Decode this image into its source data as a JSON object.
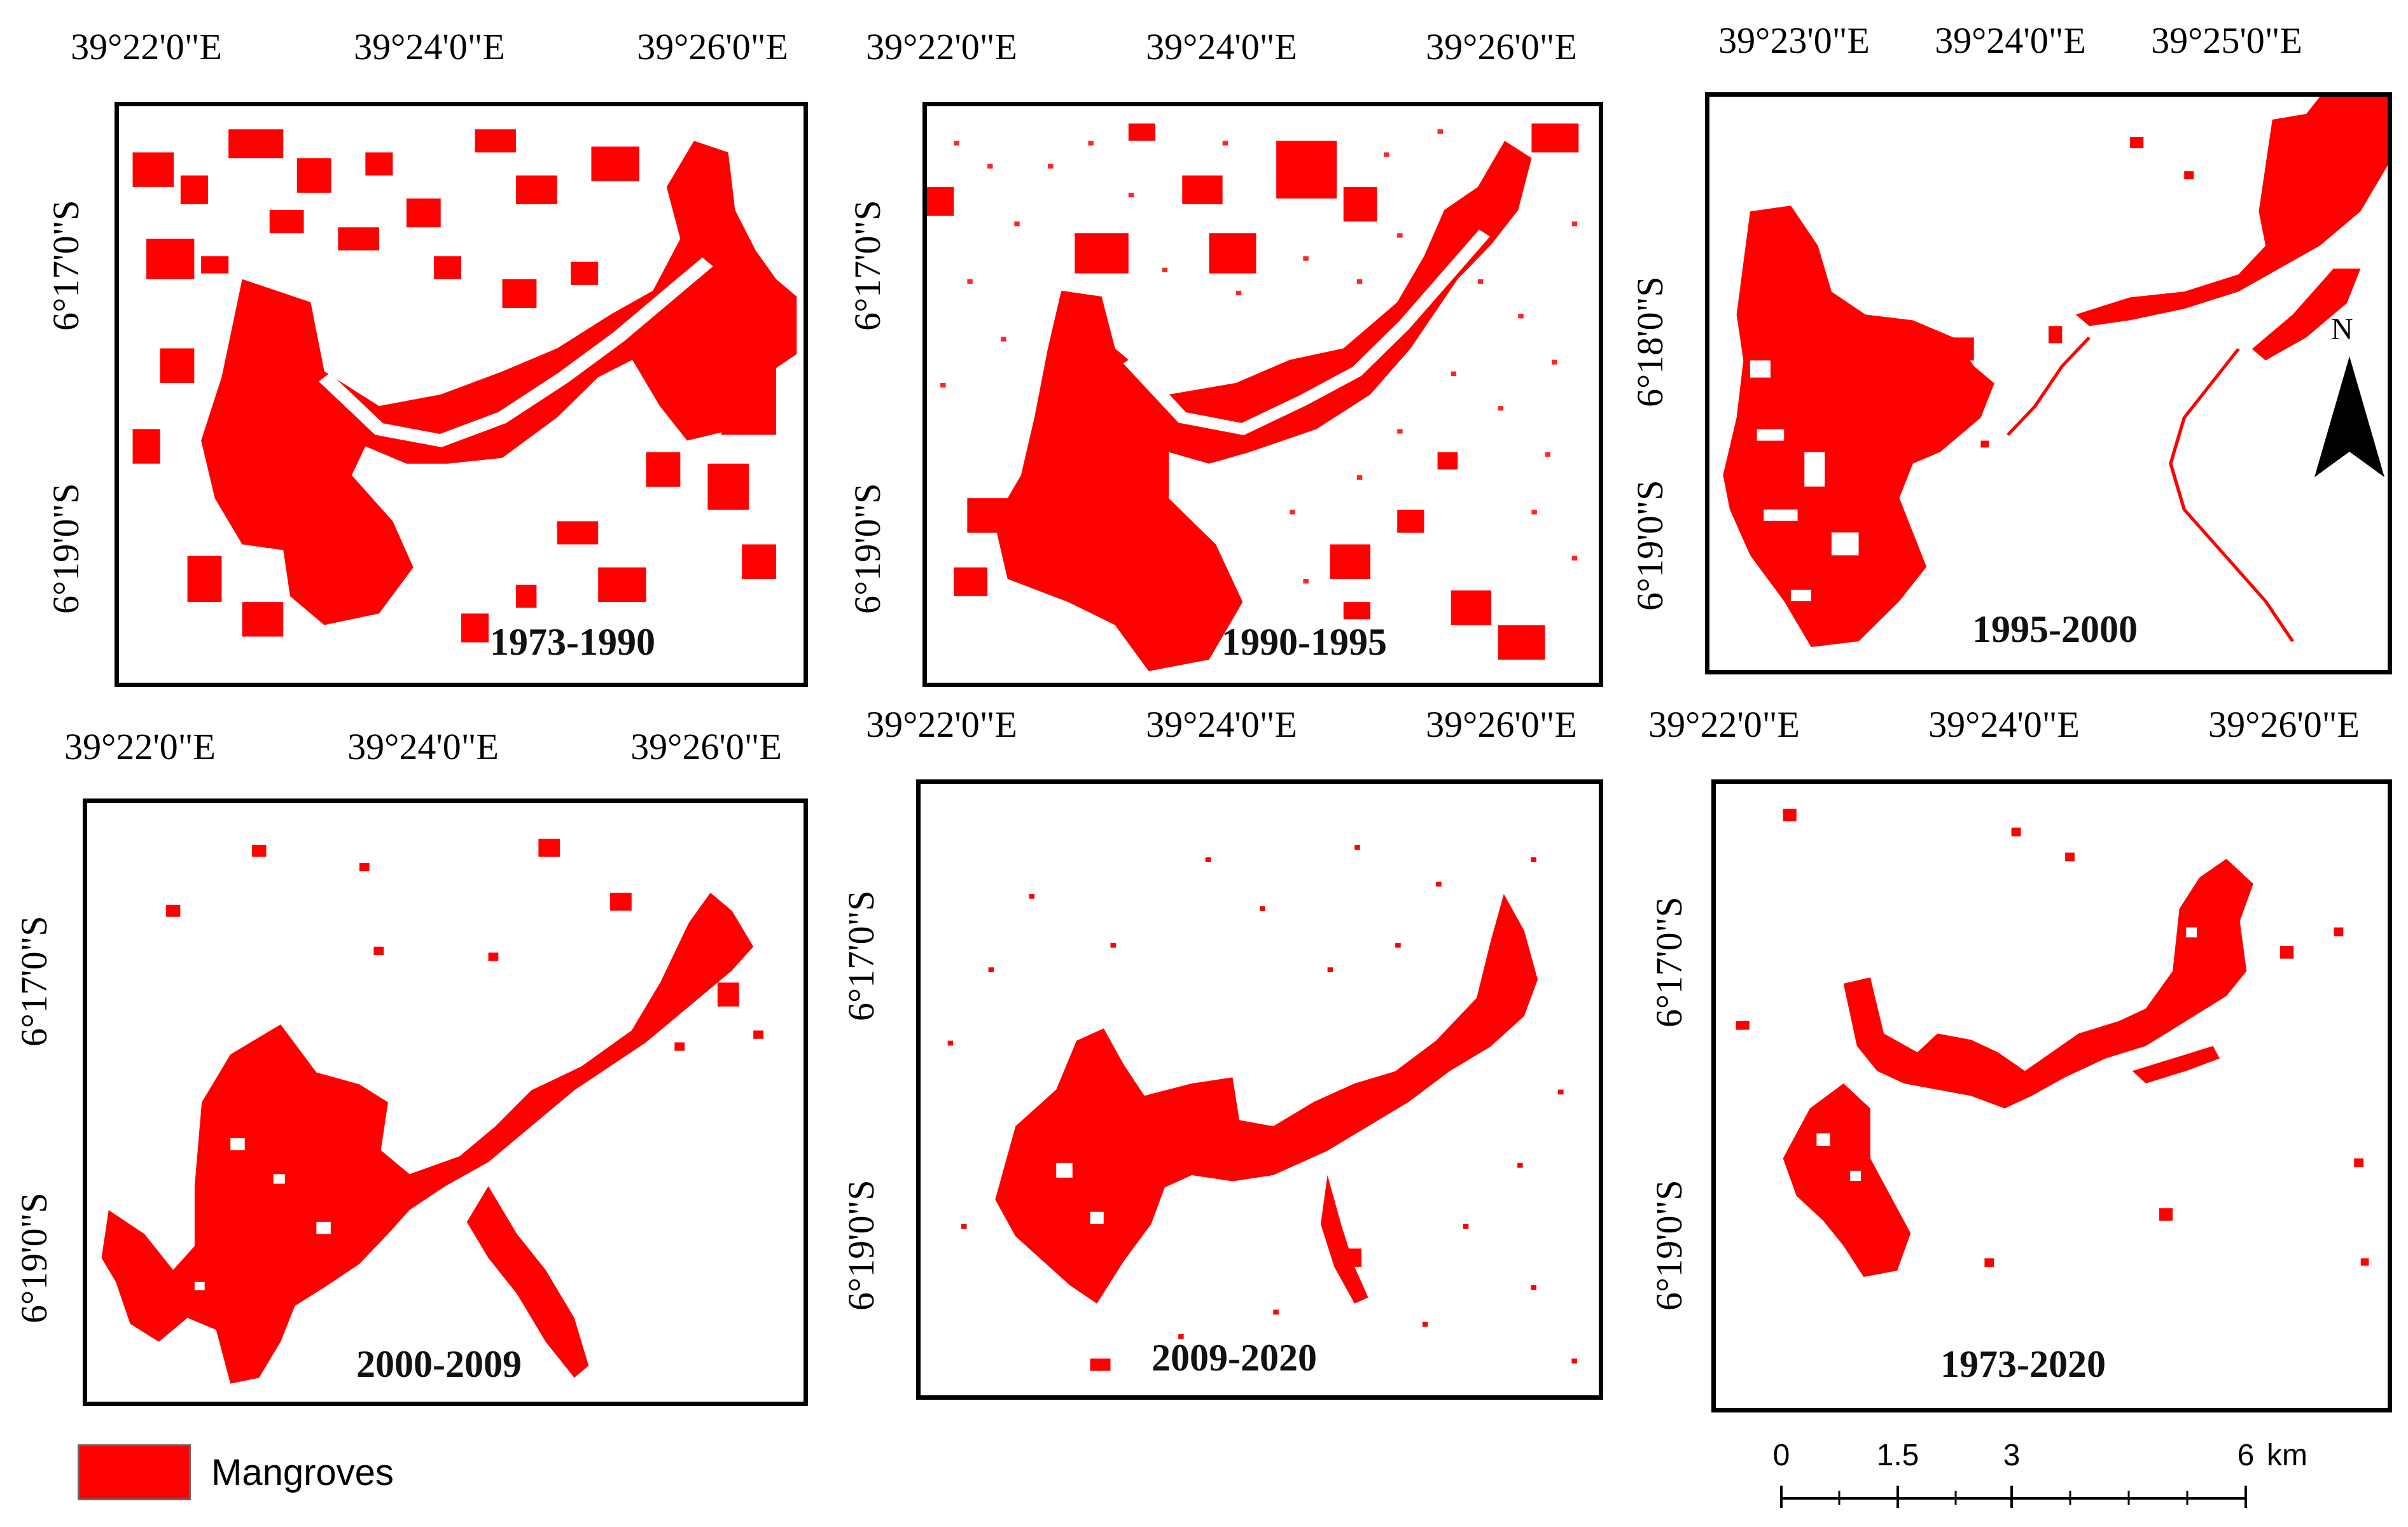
{
  "legend": {
    "label": "Mangroves",
    "color": "#ff0000"
  },
  "scale": {
    "labels": [
      "0",
      "1.5",
      "3",
      "6"
    ],
    "unit": "km"
  },
  "north": {
    "letter": "N"
  },
  "panels": [
    {
      "period": "1973-1990",
      "lon": [
        "39°22'0\"E",
        "39°24'0\"E",
        "39°26'0\"E"
      ],
      "lat": [
        "6°17'0\"S",
        "6°19'0\"S"
      ]
    },
    {
      "period": "1990-1995",
      "lon": [
        "39°22'0\"E",
        "39°24'0\"E",
        "39°26'0\"E"
      ],
      "lat": [
        "6°17'0\"S",
        "6°19'0\"S"
      ]
    },
    {
      "period": "1995-2000",
      "lon": [
        "39°23'0\"E",
        "39°24'0\"E",
        "39°25'0\"E"
      ],
      "lat": [
        "6°18'0\"S",
        "6°19'0\"S"
      ]
    },
    {
      "period": "2000-2009",
      "lon": [
        "39°22'0\"E",
        "39°24'0\"E",
        "39°26'0\"E"
      ],
      "lat": [
        "6°17'0\"S",
        "6°19'0\"S"
      ]
    },
    {
      "period": "2009-2020",
      "lon": [
        "39°22'0\"E",
        "39°24'0\"E",
        "39°26'0\"E"
      ],
      "lat": [
        "6°17'0\"S",
        "6°19'0\"S"
      ]
    },
    {
      "period": "1973-2020",
      "lon": [
        "39°22'0\"E",
        "39°24'0\"E",
        "39°26'0\"E"
      ],
      "lat": [
        "6°17'0\"S",
        "6°19'0\"S"
      ]
    }
  ]
}
